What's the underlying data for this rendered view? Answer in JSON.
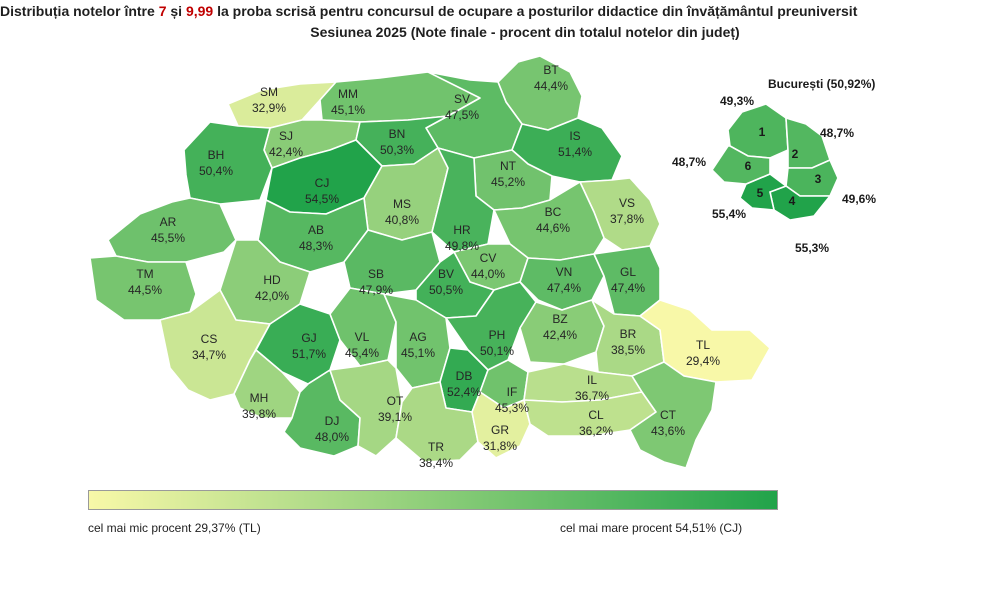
{
  "title": {
    "prefix": "Distribuția notelor între ",
    "v1": "7",
    "mid": " și ",
    "v2": "9,99",
    "suffix": " la proba scrisă pentru concursul de ocupare a posturilor didactice din învățământul preuniversit"
  },
  "subtitle": "Sesiunea 2025 (Note finale - procent din totalul notelor din județ)",
  "colors": {
    "low": "#f8f8a8",
    "high": "#21a34a"
  },
  "scale": {
    "min": 29.37,
    "max": 54.51
  },
  "counties": [
    {
      "code": "SM",
      "label": "32,9%",
      "value": 32.9
    },
    {
      "code": "MM",
      "label": "45,1%",
      "value": 45.1
    },
    {
      "code": "BT",
      "label": "44,4%",
      "value": 44.4
    },
    {
      "code": "SV",
      "label": "47,5%",
      "value": 47.5
    },
    {
      "code": "SJ",
      "label": "42,4%",
      "value": 42.4
    },
    {
      "code": "BN",
      "label": "50,3%",
      "value": 50.3
    },
    {
      "code": "IS",
      "label": "51,4%",
      "value": 51.4
    },
    {
      "code": "BH",
      "label": "50,4%",
      "value": 50.4
    },
    {
      "code": "CJ",
      "label": "54,5%",
      "value": 54.5
    },
    {
      "code": "NT",
      "label": "45,2%",
      "value": 45.2
    },
    {
      "code": "MS",
      "label": "40,8%",
      "value": 40.8
    },
    {
      "code": "HR",
      "label": "49,8%",
      "value": 49.8
    },
    {
      "code": "VS",
      "label": "37,8%",
      "value": 37.8
    },
    {
      "code": "AR",
      "label": "45,5%",
      "value": 45.5
    },
    {
      "code": "AB",
      "label": "48,3%",
      "value": 48.3
    },
    {
      "code": "BC",
      "label": "44,6%",
      "value": 44.6
    },
    {
      "code": "CV",
      "label": "44,0%",
      "value": 44.0
    },
    {
      "code": "TM",
      "label": "44,5%",
      "value": 44.5
    },
    {
      "code": "HD",
      "label": "42,0%",
      "value": 42.0
    },
    {
      "code": "SB",
      "label": "47,9%",
      "value": 47.9
    },
    {
      "code": "BV",
      "label": "50,5%",
      "value": 50.5
    },
    {
      "code": "VN",
      "label": "47,4%",
      "value": 47.4
    },
    {
      "code": "GL",
      "label": "47,4%",
      "value": 47.4
    },
    {
      "code": "CS",
      "label": "34,7%",
      "value": 34.7
    },
    {
      "code": "GJ",
      "label": "51,7%",
      "value": 51.7
    },
    {
      "code": "VL",
      "label": "45,4%",
      "value": 45.4
    },
    {
      "code": "AG",
      "label": "45,1%",
      "value": 45.1
    },
    {
      "code": "PH",
      "label": "50,1%",
      "value": 50.1
    },
    {
      "code": "BZ",
      "label": "42,4%",
      "value": 42.4
    },
    {
      "code": "BR",
      "label": "38,5%",
      "value": 38.5
    },
    {
      "code": "TL",
      "label": "29,4%",
      "value": 29.4
    },
    {
      "code": "DB",
      "label": "52,4%",
      "value": 52.4
    },
    {
      "code": "IF",
      "label": "45,3%",
      "value": 45.3
    },
    {
      "code": "IL",
      "label": "36,7%",
      "value": 36.7
    },
    {
      "code": "MH",
      "label": "39,8%",
      "value": 39.8
    },
    {
      "code": "DJ",
      "label": "48,0%",
      "value": 48.0
    },
    {
      "code": "OT",
      "label": "39,1%",
      "value": 39.1
    },
    {
      "code": "TR",
      "label": "38,4%",
      "value": 38.4
    },
    {
      "code": "GR",
      "label": "31,8%",
      "value": 31.8
    },
    {
      "code": "CL",
      "label": "36,2%",
      "value": 36.2
    },
    {
      "code": "CT",
      "label": "43,6%",
      "value": 43.6
    }
  ],
  "bucharest": {
    "title": "București (50,92%)",
    "sectors": [
      {
        "num": "1",
        "label": "49,3%",
        "value": 49.3
      },
      {
        "num": "2",
        "label": "48,7%",
        "value": 48.7
      },
      {
        "num": "3",
        "label": "49,6%",
        "value": 49.6
      },
      {
        "num": "4",
        "label": "55,3%",
        "value": 55.3
      },
      {
        "num": "5",
        "label": "55,4%",
        "value": 55.4
      },
      {
        "num": "6",
        "label": "48,7%",
        "value": 48.7
      }
    ]
  },
  "legend": {
    "min_label": "cel mai mic procent 29,37% (TL)",
    "max_label": "cel mai mare procent 54,51% (CJ)"
  }
}
